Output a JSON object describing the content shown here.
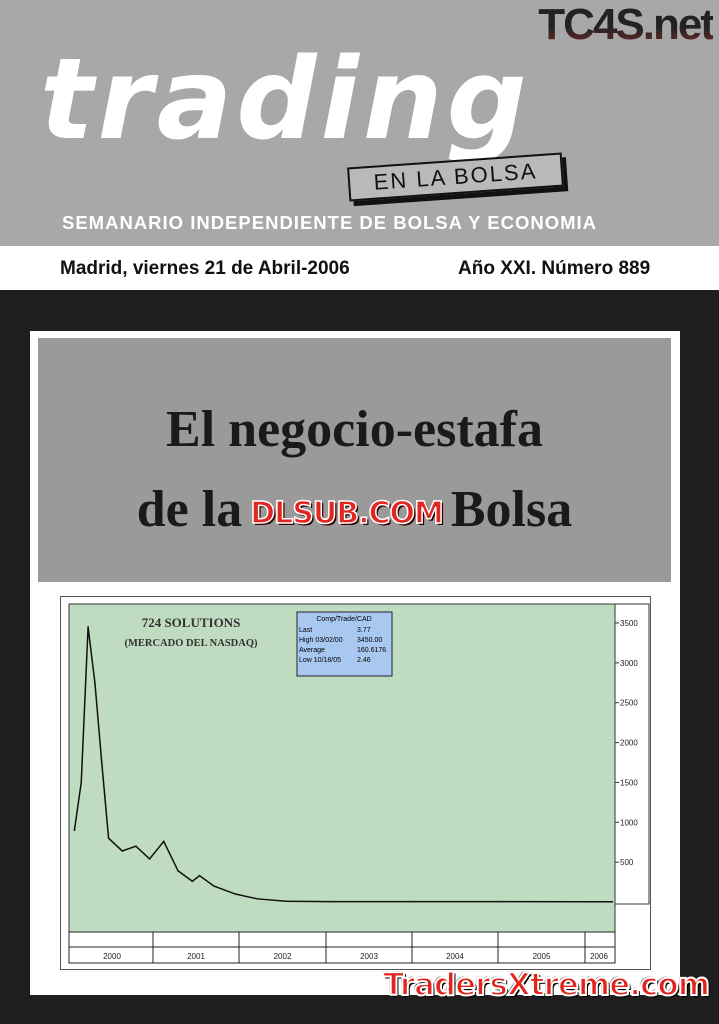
{
  "masthead": {
    "logo": "trading",
    "subtitle_box": "EN LA BOLSA",
    "tagline": "SEMANARIO INDEPENDIENTE DE BOLSA Y ECONOMIA",
    "watermark_top": "TC4S.net"
  },
  "issue": {
    "date": "Madrid, viernes 21 de Abril-2006",
    "number": "Año XXI. Número 889"
  },
  "headline": {
    "line1": "El negocio-estafa",
    "line2_start": "de la",
    "line2_end": "Bolsa",
    "watermark": "DLSUB.COM"
  },
  "footer_watermark": "TradersXtreme.com",
  "chart_data": {
    "type": "line",
    "title": "724 SOLUTIONS",
    "subtitle": "(MERCADO DEL NASDAQ)",
    "info_box": {
      "title": "Comp/Trade/CAD",
      "rows": [
        [
          "Last",
          "3.77"
        ],
        [
          "High  03/02/00",
          "3450.00"
        ],
        [
          "Average",
          "160.6176"
        ],
        [
          "Low  10/18/05",
          "2.46"
        ]
      ]
    },
    "x_categories": [
      "2000",
      "2001",
      "2002",
      "2003",
      "2004",
      "2005",
      "2006"
    ],
    "y_ticks": [
      500,
      1000,
      1500,
      2000,
      2500,
      3000,
      3500
    ],
    "ylim": [
      0,
      3500
    ],
    "y_axis_position": "right",
    "background": "#bfdcc0",
    "line_color": "#111111",
    "series": [
      {
        "points": [
          [
            "2000-01",
            900
          ],
          [
            "2000-02",
            1500
          ],
          [
            "2000-03",
            3450
          ],
          [
            "2000-04",
            2750
          ],
          [
            "2000-05",
            1750
          ],
          [
            "2000-06",
            800
          ],
          [
            "2000-08",
            640
          ],
          [
            "2000-10",
            700
          ],
          [
            "2000-12",
            540
          ],
          [
            "2001-02",
            760
          ],
          [
            "2001-04",
            390
          ],
          [
            "2001-06",
            260
          ],
          [
            "2001-07",
            330
          ],
          [
            "2001-09",
            200
          ],
          [
            "2001-12",
            100
          ],
          [
            "2002-03",
            40
          ],
          [
            "2002-07",
            10
          ],
          [
            "2003-01",
            5
          ],
          [
            "2004-01",
            4
          ],
          [
            "2005-01",
            5
          ],
          [
            "2006-03",
            3.77
          ]
        ]
      }
    ]
  }
}
